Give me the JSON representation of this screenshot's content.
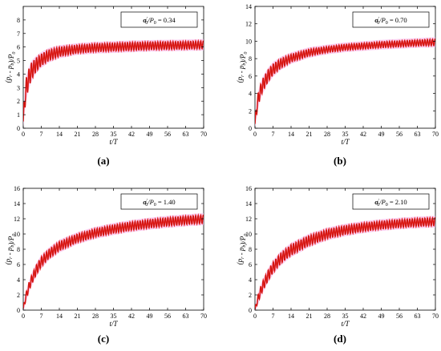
{
  "figure": {
    "panels": [
      {
        "label": "(a)",
        "legend_param": "0.34"
      },
      {
        "label": "(b)",
        "legend_param": "0.70"
      },
      {
        "label": "(c)",
        "legend_param": "1.40"
      },
      {
        "label": "(d)",
        "legend_param": "2.10"
      }
    ],
    "colors": {
      "band_fill": "#e8241f",
      "band_edge": "#b00000",
      "halo": "#f5a9e8",
      "text": "#000000"
    }
  },
  "chart_data": [
    {
      "type": "area",
      "xlabel_var": "t",
      "xlabel_unit": "T",
      "ylabel": "(p_r - p_b)/P_0",
      "legend": "σ'_0/P_0 = 0.34",
      "xlim": [
        0,
        70
      ],
      "ylim": [
        0,
        9
      ],
      "xticks": [
        0,
        7,
        14,
        21,
        28,
        35,
        42,
        49,
        56,
        63,
        70
      ],
      "yticks": [
        0,
        1,
        2,
        3,
        4,
        5,
        6,
        7,
        8
      ],
      "series": [
        {
          "x": [
            0,
            0.5,
            1,
            2,
            3,
            5,
            7,
            10,
            14,
            21,
            28,
            35,
            42,
            49,
            56,
            63,
            70
          ],
          "y_lower": [
            0.2,
            1.2,
            2.0,
            2.9,
            3.5,
            4.2,
            4.6,
            5.0,
            5.3,
            5.55,
            5.65,
            5.7,
            5.75,
            5.8,
            5.82,
            5.85,
            5.87
          ],
          "y_upper": [
            0.8,
            2.6,
            3.6,
            4.3,
            4.8,
            5.2,
            5.5,
            5.8,
            6.0,
            6.15,
            6.25,
            6.3,
            6.35,
            6.38,
            6.4,
            6.42,
            6.45
          ]
        }
      ]
    },
    {
      "type": "area",
      "xlabel_var": "t",
      "xlabel_unit": "T",
      "ylabel": "(p_r - p_b)/P_0",
      "legend": "σ'_0/P_0 = 0.70",
      "xlim": [
        0,
        70
      ],
      "ylim": [
        0,
        14
      ],
      "xticks": [
        0,
        7,
        14,
        21,
        28,
        35,
        42,
        49,
        56,
        63,
        70
      ],
      "yticks": [
        0,
        2,
        4,
        6,
        8,
        10,
        12,
        14
      ],
      "series": [
        {
          "x": [
            0,
            0.5,
            1,
            2,
            3,
            5,
            7,
            10,
            14,
            21,
            28,
            35,
            42,
            49,
            56,
            63,
            70
          ],
          "y_lower": [
            0.2,
            1.2,
            2.2,
            3.4,
            4.2,
            5.3,
            6.1,
            6.9,
            7.6,
            8.3,
            8.7,
            8.95,
            9.1,
            9.25,
            9.35,
            9.45,
            9.5
          ],
          "y_upper": [
            0.8,
            2.6,
            3.8,
            4.9,
            5.7,
            6.7,
            7.4,
            8.0,
            8.5,
            9.1,
            9.4,
            9.65,
            9.8,
            9.95,
            10.05,
            10.15,
            10.25
          ]
        }
      ]
    },
    {
      "type": "area",
      "xlabel_var": "t",
      "xlabel_unit": "T",
      "ylabel": "(p_r - p_b)/P_0",
      "legend": "σ'_0/P_0 = 1.40",
      "xlim": [
        0,
        70
      ],
      "ylim": [
        0,
        16
      ],
      "xticks": [
        0,
        7,
        14,
        21,
        28,
        35,
        42,
        49,
        56,
        63,
        70
      ],
      "yticks": [
        0,
        2,
        4,
        6,
        8,
        10,
        12,
        14,
        16
      ],
      "series": [
        {
          "x": [
            0,
            1,
            2,
            3,
            5,
            7,
            10,
            14,
            21,
            28,
            35,
            42,
            49,
            56,
            63,
            70
          ],
          "y_lower": [
            0,
            1.2,
            2.3,
            3.2,
            4.6,
            5.7,
            6.8,
            7.8,
            8.9,
            9.6,
            10.1,
            10.5,
            10.8,
            11.05,
            11.25,
            11.4
          ],
          "y_upper": [
            0.4,
            2.2,
            3.4,
            4.4,
            5.9,
            7.0,
            8.0,
            9.0,
            10.0,
            10.7,
            11.2,
            11.6,
            11.9,
            12.15,
            12.35,
            12.5
          ]
        }
      ]
    },
    {
      "type": "area",
      "xlabel_var": "t",
      "xlabel_unit": "T",
      "ylabel": "(p_r - p_b)/P_0",
      "legend": "σ'_0/P_0 = 2.10",
      "xlim": [
        0,
        70
      ],
      "ylim": [
        0,
        16
      ],
      "xticks": [
        0,
        7,
        14,
        21,
        28,
        35,
        42,
        49,
        56,
        63,
        70
      ],
      "yticks": [
        0,
        2,
        4,
        6,
        8,
        10,
        12,
        14,
        16
      ],
      "series": [
        {
          "x": [
            0,
            1,
            2,
            3,
            5,
            7,
            10,
            14,
            21,
            28,
            35,
            42,
            49,
            56,
            63,
            70
          ],
          "y_lower": [
            0,
            0.8,
            1.7,
            2.5,
            3.8,
            4.9,
            6.1,
            7.2,
            8.5,
            9.4,
            9.95,
            10.35,
            10.65,
            10.85,
            11.0,
            11.1
          ],
          "y_upper": [
            0.2,
            1.8,
            2.9,
            3.8,
            5.2,
            6.3,
            7.5,
            8.6,
            9.8,
            10.6,
            11.1,
            11.45,
            11.7,
            11.9,
            12.05,
            12.15
          ]
        }
      ]
    }
  ]
}
